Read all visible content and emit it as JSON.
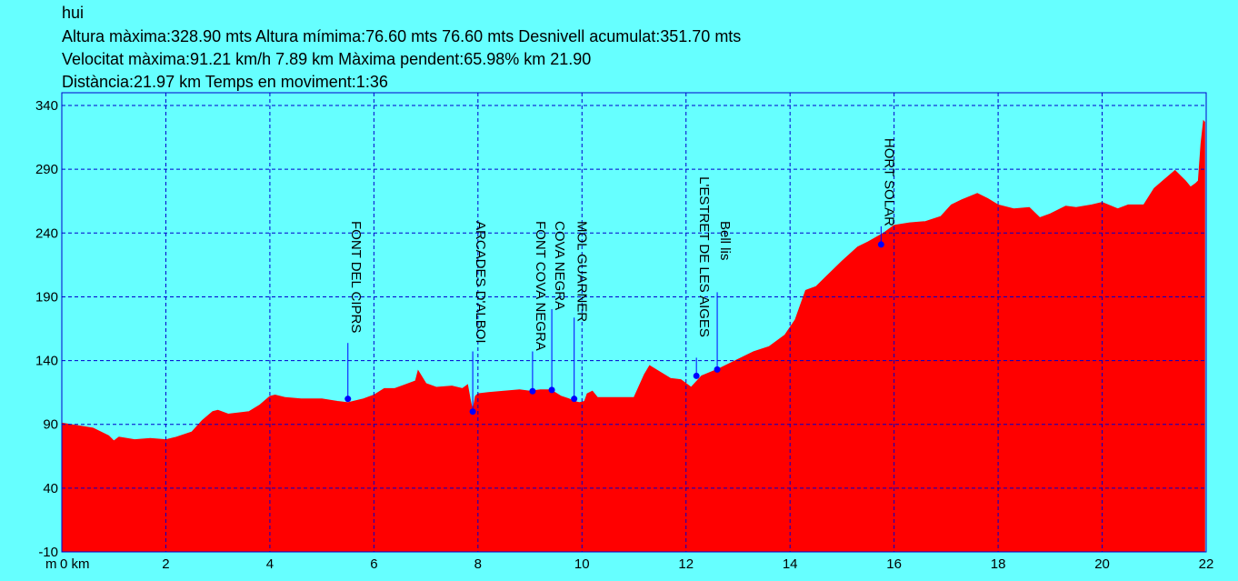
{
  "header": {
    "title": "hui",
    "line1": "Altura màxima:328.90 mts Altura mímima:76.60 mts 76.60 mts Desnivell acumulat:351.70 mts",
    "line2": "Velocitat màxima:91.21 km/h 7.89 km Màxima pendent:65.98% km 21.90",
    "line3": "Distància:21.97 km Temps en moviment:1:36"
  },
  "colors": {
    "background": "#66ffff",
    "fill": "#ff0000",
    "grid": "#0000cc",
    "marker": "#0000ff"
  },
  "chart_data": {
    "type": "area",
    "y_unit_label": "m",
    "x_unit_label": "0 km",
    "xlim": [
      0,
      22
    ],
    "ylim": [
      -10,
      350
    ],
    "x_ticks": [
      2,
      4,
      6,
      8,
      10,
      12,
      14,
      16,
      18,
      20,
      22
    ],
    "y_ticks": [
      -10,
      40,
      90,
      140,
      190,
      240,
      290,
      340
    ],
    "grid": true,
    "series": [
      {
        "x": [
          0,
          0.3,
          0.6,
          0.9,
          1.0,
          1.1,
          1.4,
          1.7,
          2.0,
          2.2,
          2.5,
          2.7,
          2.9,
          3.0,
          3.2,
          3.4,
          3.6,
          3.8,
          4.0,
          4.1,
          4.3,
          4.6,
          5.0,
          5.3,
          5.5,
          5.8,
          6.0,
          6.2,
          6.4,
          6.6,
          6.8,
          6.85,
          7.0,
          7.2,
          7.5,
          7.7,
          7.8,
          7.85,
          7.9,
          7.95,
          8.0,
          8.2,
          8.5,
          8.8,
          9.0,
          9.2,
          9.4,
          9.6,
          9.75,
          9.85,
          9.95,
          10.05,
          10.1,
          10.2,
          10.3,
          10.5,
          10.8,
          11.0,
          11.2,
          11.3,
          11.5,
          11.7,
          11.9,
          12.0,
          12.1,
          12.3,
          12.6,
          13.0,
          13.3,
          13.6,
          13.9,
          14.1,
          14.3,
          14.5,
          14.7,
          15.0,
          15.3,
          15.5,
          15.8,
          16.0,
          16.3,
          16.6,
          16.9,
          17.1,
          17.3,
          17.6,
          17.8,
          18.0,
          18.3,
          18.6,
          18.8,
          19.0,
          19.3,
          19.5,
          19.8,
          20.0,
          20.3,
          20.5,
          20.8,
          21.0,
          21.2,
          21.4,
          21.6,
          21.7,
          21.8,
          21.85,
          21.9,
          21.95,
          21.97
        ],
        "y": [
          91,
          89,
          87,
          81,
          77,
          80,
          78,
          79,
          78,
          80,
          84,
          93,
          100,
          101,
          98,
          99,
          100,
          105,
          112,
          113,
          111,
          110,
          110,
          108,
          107,
          110,
          113,
          118,
          118,
          121,
          124,
          132,
          122,
          119,
          120,
          118,
          121,
          110,
          100,
          112,
          114,
          115,
          116,
          117,
          116,
          117,
          117,
          112,
          110,
          108,
          107,
          108,
          114,
          116,
          111,
          111,
          111,
          111,
          129,
          136,
          131,
          126,
          125,
          122,
          119,
          128,
          133,
          141,
          147,
          151,
          160,
          172,
          195,
          198,
          206,
          218,
          229,
          233,
          240,
          246,
          248,
          249,
          253,
          262,
          266,
          271,
          267,
          262,
          259,
          260,
          252,
          255,
          261,
          260,
          262,
          264,
          259,
          262,
          262,
          275,
          282,
          289,
          281,
          276,
          279,
          281,
          310,
          328,
          327
        ]
      }
    ],
    "waypoints": [
      {
        "name": "FONT DEL CIPRS",
        "x": 5.5,
        "y": 110
      },
      {
        "name": "ARCADES D'ALBOI",
        "x": 7.9,
        "y": 100
      },
      {
        "name": "FONT COVA NEGRA",
        "x": 9.05,
        "y": 116
      },
      {
        "name": "COVA NEGRA",
        "x": 9.42,
        "y": 117
      },
      {
        "name": "MOL GUARNER",
        "x": 9.85,
        "y": 110
      },
      {
        "name": "L'ESTRET DE LES AIGES",
        "x": 12.2,
        "y": 128
      },
      {
        "name": "Bell lis",
        "x": 12.6,
        "y": 133
      },
      {
        "name": "HORT SOLAR",
        "x": 15.75,
        "y": 231
      }
    ]
  }
}
